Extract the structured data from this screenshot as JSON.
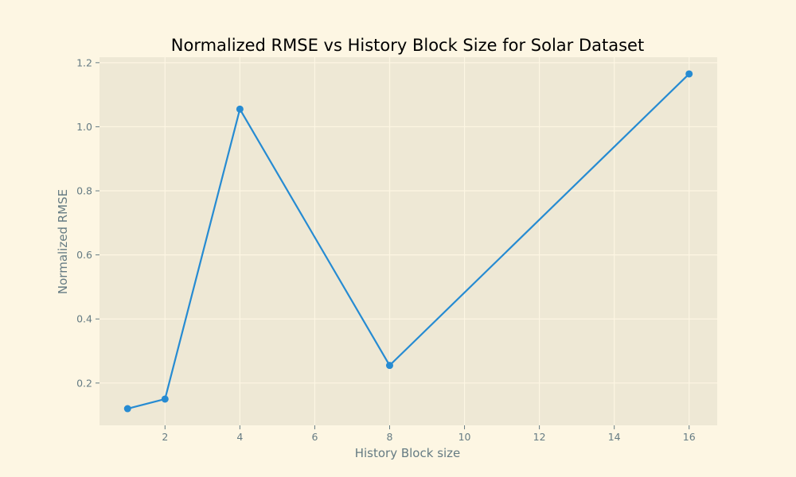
{
  "chart_data": {
    "type": "line",
    "title": "Normalized RMSE vs History Block Size for Solar Dataset",
    "xlabel": "History Block size",
    "ylabel": "Normalized RMSE",
    "x": [
      1,
      2,
      4,
      8,
      16
    ],
    "series": [
      {
        "values": [
          0.12,
          0.15,
          1.055,
          0.255,
          1.165
        ]
      }
    ],
    "xlim": [
      0.25,
      16.75
    ],
    "ylim": [
      0.068,
      1.217
    ],
    "xticks": [
      2,
      4,
      6,
      8,
      10,
      12,
      14,
      16
    ],
    "yticks": [
      0.2,
      0.4,
      0.6,
      0.8,
      1.0,
      1.2
    ],
    "ytick_labels": [
      "0.2",
      "0.4",
      "0.6",
      "0.8",
      "1.0",
      "1.2"
    ],
    "grid": true,
    "colors": {
      "figure_background": "#fdf6e3",
      "plot_background": "#eee8d5",
      "line": "#268bd2",
      "text": "#657b83"
    }
  }
}
